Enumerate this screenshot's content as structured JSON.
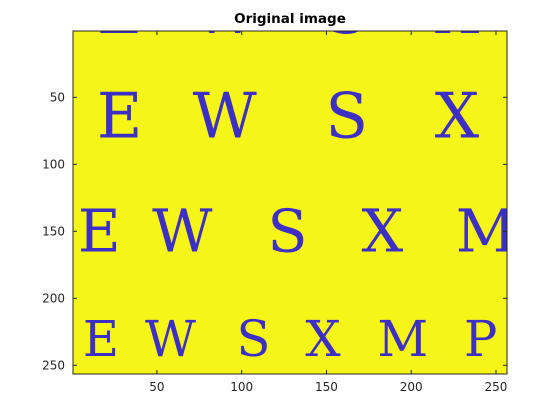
{
  "chart_data": {
    "type": "heatmap",
    "title": "Original image",
    "xlabel": "",
    "ylabel": "",
    "xlim": [
      0.5,
      256.5
    ],
    "ylim": [
      0.5,
      256.5
    ],
    "y_reversed": true,
    "xticks": [
      50,
      100,
      150,
      200,
      250
    ],
    "yticks": [
      50,
      100,
      150,
      200,
      250
    ],
    "xtick_labels": [
      "50",
      "100",
      "150",
      "200",
      "250"
    ],
    "ytick_labels": [
      "50",
      "100",
      "150",
      "200",
      "250"
    ],
    "background_value": "high",
    "foreground_value": "low",
    "colors": {
      "background": "#F5F518",
      "foreground": "#3D2EC4",
      "axis": "#262626"
    },
    "rows": [
      {
        "letters": [
          "E",
          "W",
          "S",
          "X"
        ],
        "centers_x": [
          28,
          90,
          162,
          227
        ],
        "baseline_y": 2,
        "letter_height": 34
      },
      {
        "letters": [
          "E",
          "W",
          "S",
          "X"
        ],
        "centers_x": [
          28,
          90,
          162,
          227
        ],
        "baseline_y": 80,
        "letter_height": 34
      },
      {
        "letters": [
          "E",
          "W",
          "S",
          "X",
          "M"
        ],
        "centers_x": [
          16,
          65,
          127,
          183,
          244
        ],
        "baseline_y": 165,
        "letter_height": 32
      },
      {
        "letters": [
          "E",
          "W",
          "S",
          "X",
          "M",
          "P"
        ],
        "centers_x": [
          17,
          58,
          107,
          148,
          195,
          241
        ],
        "baseline_y": 243,
        "letter_height": 27
      }
    ]
  }
}
